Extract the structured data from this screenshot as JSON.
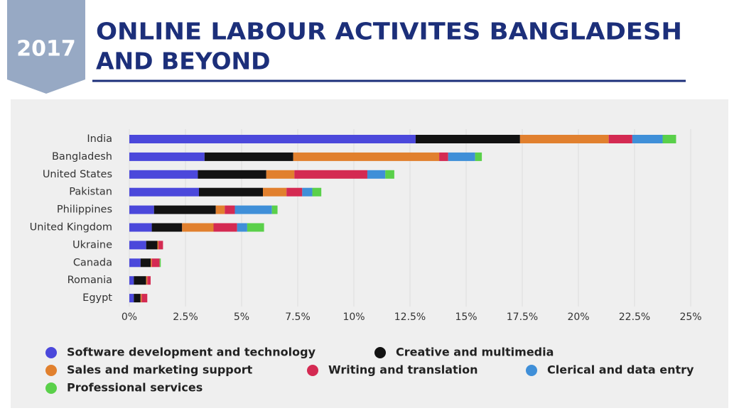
{
  "slide": {
    "badge": "2017",
    "title": [
      "ONLINE LABOUR ACTIVITES BANGLADESH",
      "AND BEYOND"
    ]
  },
  "chart_data": {
    "type": "stacked-barh",
    "categories": [
      "India",
      "Bangladesh",
      "United States",
      "Pakistan",
      "Philippines",
      "United Kingdom",
      "Ukraine",
      "Canada",
      "Romania",
      "Egypt"
    ],
    "series": [
      {
        "name": "Software development and technology",
        "color": "#4b48db",
        "values": [
          12.75,
          3.35,
          3.05,
          3.1,
          1.1,
          1.0,
          0.75,
          0.5,
          0.2,
          0.2
        ]
      },
      {
        "name": "Creative and multimedia",
        "color": "#121212",
        "values": [
          4.65,
          3.95,
          3.05,
          2.85,
          2.75,
          1.35,
          0.5,
          0.45,
          0.55,
          0.3
        ]
      },
      {
        "name": "Sales and marketing support",
        "color": "#e1802e",
        "values": [
          3.95,
          6.5,
          1.25,
          1.05,
          0.4,
          1.4,
          0.05,
          0.05,
          0.05,
          0.05
        ]
      },
      {
        "name": "Writing and translation",
        "color": "#d42a52",
        "values": [
          1.05,
          0.4,
          3.25,
          0.7,
          0.45,
          1.05,
          0.2,
          0.35,
          0.15,
          0.25
        ]
      },
      {
        "name": "Clerical and data entry",
        "color": "#3f8fd8",
        "values": [
          1.35,
          1.2,
          0.8,
          0.45,
          1.65,
          0.45,
          0,
          0,
          0,
          0
        ]
      },
      {
        "name": "Professional services",
        "color": "#5ad04a",
        "values": [
          0.6,
          0.3,
          0.4,
          0.4,
          0.25,
          0.75,
          0,
          0.05,
          0,
          0
        ]
      }
    ],
    "xlim": [
      0,
      25
    ],
    "xticks": [
      {
        "value": 0,
        "label": "0%"
      },
      {
        "value": 2.5,
        "label": "2.5%"
      },
      {
        "value": 5,
        "label": "5%"
      },
      {
        "value": 7.5,
        "label": "7.5%"
      },
      {
        "value": 10,
        "label": "10%"
      },
      {
        "value": 12.5,
        "label": "12.5%"
      },
      {
        "value": 15,
        "label": "15%"
      },
      {
        "value": 17.5,
        "label": "17.5%"
      },
      {
        "value": 20,
        "label": "20%"
      },
      {
        "value": 22.5,
        "label": "22.5%"
      },
      {
        "value": 25,
        "label": "25%"
      }
    ],
    "grid": true,
    "legend": "bottom"
  }
}
